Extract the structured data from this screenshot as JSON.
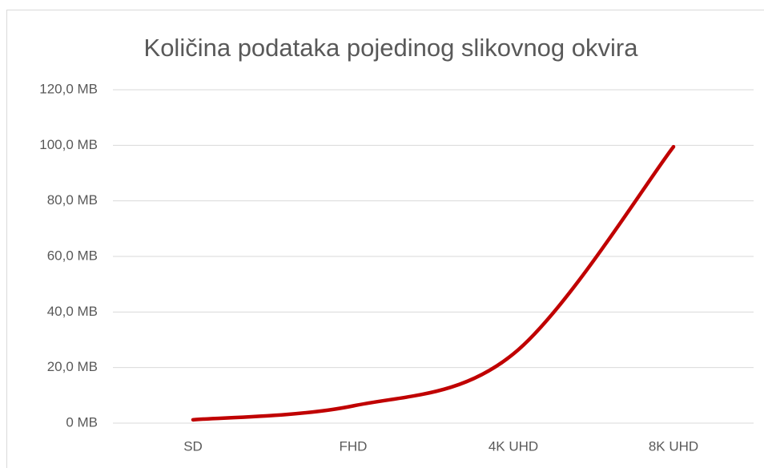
{
  "chart_data": {
    "type": "line",
    "title": "Količina podataka pojedinog slikovnog okvira",
    "categories": [
      "SD",
      "FHD",
      "4K UHD",
      "8K UHD"
    ],
    "series": [
      {
        "color": "#c00000",
        "values": [
          1.2,
          6.2,
          24.9,
          99.5
        ]
      }
    ],
    "smooth": true,
    "ylim": [
      0,
      120
    ],
    "yticks": [
      {
        "value": 0,
        "label": "0 MB"
      },
      {
        "value": 20,
        "label": "20,0 MB"
      },
      {
        "value": 40,
        "label": "40,0 MB"
      },
      {
        "value": 60,
        "label": "60,0 MB"
      },
      {
        "value": 80,
        "label": "80,0 MB"
      },
      {
        "value": 100,
        "label": "100,0 MB"
      },
      {
        "value": 120,
        "label": "120,0 MB"
      }
    ],
    "grid": true
  }
}
